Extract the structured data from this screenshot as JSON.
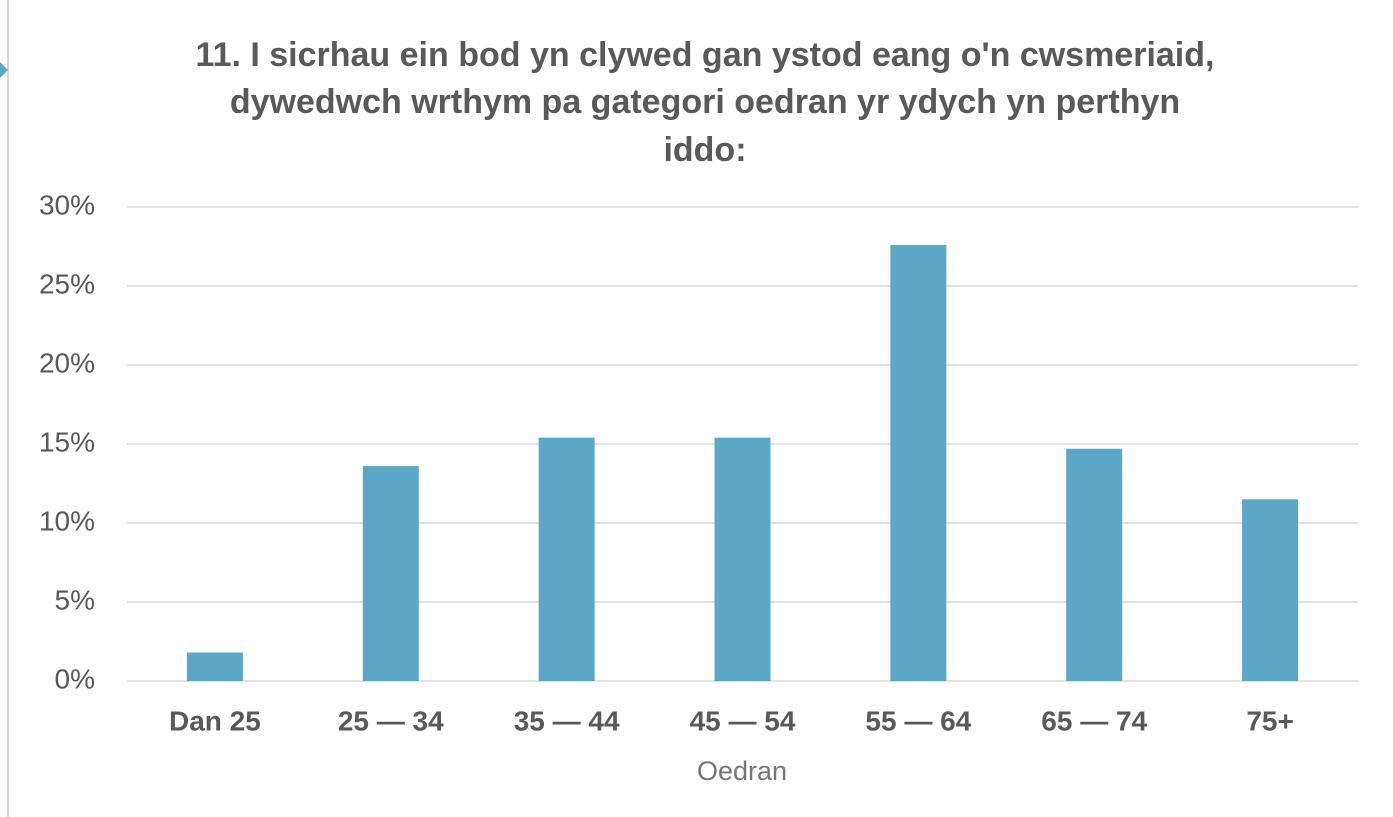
{
  "chart_data": {
    "type": "bar",
    "title": [
      "11. I sicrhau ein bod yn clywed gan ystod eang o'n cwsmeriaid,",
      "dywedwch wrthym pa gategori oedran yr ydych yn perthyn",
      "iddo:"
    ],
    "x_label": "Oedran",
    "categories": [
      "Dan 25",
      "25 — 34",
      "35 — 44",
      "45 — 54",
      "55 — 64",
      "65 — 74",
      "75+"
    ],
    "values": [
      1.8,
      13.6,
      15.4,
      15.4,
      27.6,
      14.7,
      11.5
    ],
    "color": "#5ba7c7",
    "ylim": [
      0,
      30
    ],
    "yticks": [
      {
        "value": 0,
        "label": "0%"
      },
      {
        "value": 5,
        "label": "5%"
      },
      {
        "value": 10,
        "label": "10%"
      },
      {
        "value": 15,
        "label": "15%"
      },
      {
        "value": 20,
        "label": "20%"
      },
      {
        "value": 25,
        "label": "25%"
      },
      {
        "value": 30,
        "label": "30%"
      }
    ],
    "grid": true
  }
}
